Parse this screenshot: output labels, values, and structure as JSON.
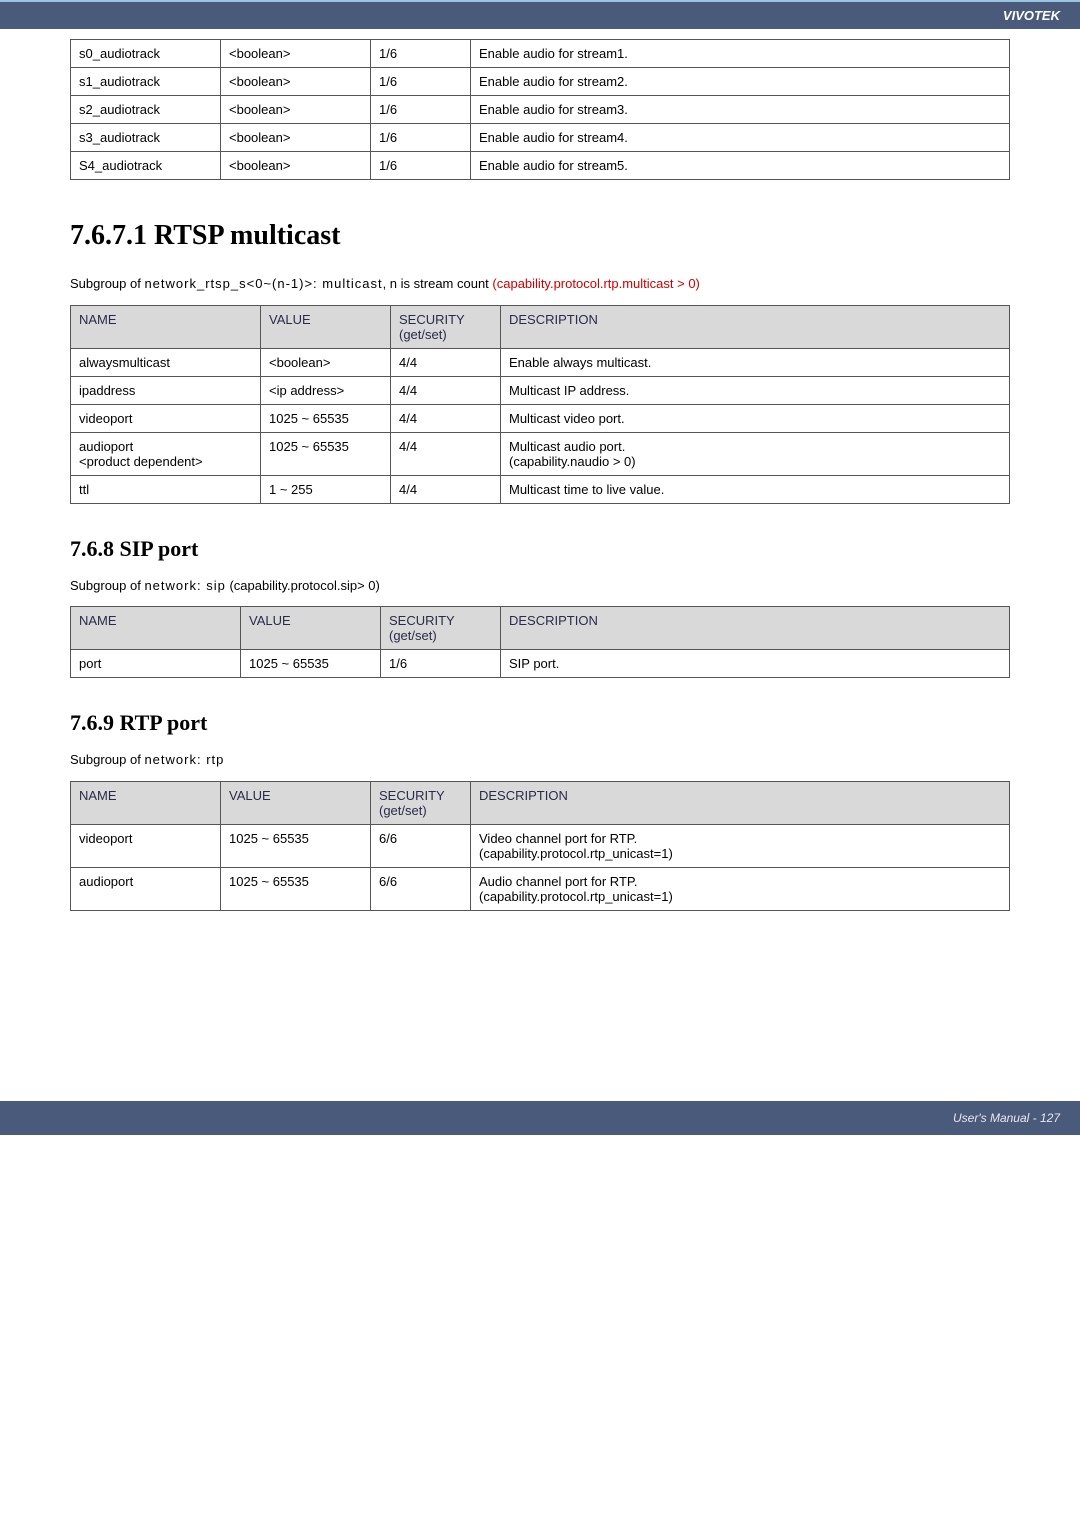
{
  "brand": "VIVOTEK",
  "footer": "User's Manual - 127",
  "table1": {
    "rows": [
      [
        "s0_audiotrack",
        "<boolean>",
        "1/6",
        "Enable audio for stream1."
      ],
      [
        "s1_audiotrack",
        "<boolean>",
        "1/6",
        "Enable audio for stream2."
      ],
      [
        "s2_audiotrack",
        "<boolean>",
        "1/6",
        "Enable audio for stream3."
      ],
      [
        "s3_audiotrack",
        "<boolean>",
        "1/6",
        "Enable audio for stream4."
      ],
      [
        "S4_audiotrack",
        "<boolean>",
        "1/6",
        "Enable audio for stream5."
      ]
    ]
  },
  "section_rtsp": {
    "title": "7.6.7.1 RTSP multicast",
    "intro_pre": "Subgroup of ",
    "intro_code": "network_rtsp_s<0~(n-1)>: multicast",
    "intro_mid": ", n is stream count ",
    "intro_red": "(capability.protocol.rtp.multicast > 0)",
    "headers": [
      "NAME",
      "VALUE",
      "SECURITY (get/set)",
      "DESCRIPTION"
    ],
    "rows": [
      [
        "alwaysmulticast",
        "<boolean>",
        "4/4",
        "Enable always multicast."
      ],
      [
        "ipaddress",
        "<ip address>",
        "4/4",
        "Multicast IP address."
      ],
      [
        "videoport",
        "1025 ~ 65535",
        "4/4",
        "Multicast video port."
      ],
      [
        "audioport\n<product dependent>",
        "1025 ~ 65535",
        "4/4",
        "Multicast audio port.\n(capability.naudio > 0)"
      ],
      [
        "ttl",
        "1 ~ 255",
        "4/4",
        "Multicast time to live value."
      ]
    ]
  },
  "section_sip": {
    "title": "7.6.8 SIP port",
    "intro_pre": "Subgroup of ",
    "intro_code": "network: sip",
    "intro_post": " (capability.protocol.sip> 0)",
    "headers": [
      "NAME",
      "VALUE",
      "SECURITY (get/set)",
      "DESCRIPTION"
    ],
    "rows": [
      [
        "port",
        "1025 ~ 65535",
        "1/6",
        "SIP port."
      ]
    ]
  },
  "section_rtp": {
    "title": "7.6.9 RTP port",
    "intro_pre": "Subgroup of ",
    "intro_code": "network: rtp",
    "headers": [
      "NAME",
      "VALUE",
      "SECURITY (get/set)",
      "DESCRIPTION"
    ],
    "rows": [
      [
        "videoport",
        "1025 ~ 65535",
        "6/6",
        "Video channel port for RTP.\n(capability.protocol.rtp_unicast=1)"
      ],
      [
        "audioport",
        "1025 ~ 65535",
        "6/6",
        "Audio channel port for RTP.\n(capability.protocol.rtp_unicast=1)"
      ]
    ]
  },
  "header_labels": {
    "name": "NAME",
    "value": "VALUE",
    "security": "SECURITY",
    "getset": "(get/set)",
    "description": "DESCRIPTION"
  }
}
